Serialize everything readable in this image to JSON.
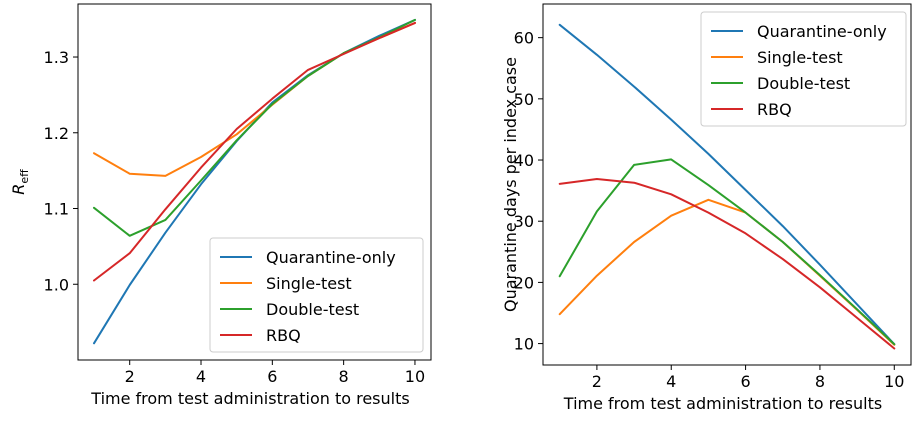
{
  "colors": {
    "quarantine_only": "#1f77b4",
    "single_test": "#ff7f0e",
    "double_test": "#2ca02c",
    "rbq": "#d62728"
  },
  "chart_data": [
    {
      "type": "line",
      "xlabel": "Time from test administration to results",
      "ylabel": "R",
      "ylabel_subscript": "eff",
      "xlim": [
        0.55,
        10.45
      ],
      "ylim": [
        0.9,
        1.37
      ],
      "xticks": [
        "2",
        "4",
        "6",
        "8",
        "10"
      ],
      "yticks": [
        "1.0",
        "1.1",
        "1.2",
        "1.3"
      ],
      "legend_position": "lower-right",
      "x": [
        1,
        2,
        3,
        4,
        5,
        6,
        7,
        8,
        9,
        10
      ],
      "series": [
        {
          "name": "Quarantine-only",
          "color": "#1f77b4",
          "values": [
            0.922,
            0.999,
            1.068,
            1.132,
            1.189,
            1.24,
            1.276,
            1.305,
            1.328,
            1.349
          ]
        },
        {
          "name": "Single-test",
          "color": "#ff7f0e",
          "values": [
            1.173,
            1.146,
            1.143,
            1.168,
            1.198,
            1.237,
            1.275,
            1.305,
            1.325,
            1.345
          ]
        },
        {
          "name": "Double-test",
          "color": "#2ca02c",
          "values": [
            1.101,
            1.064,
            1.085,
            1.137,
            1.19,
            1.238,
            1.275,
            1.305,
            1.326,
            1.349
          ]
        },
        {
          "name": "RBQ",
          "color": "#d62728",
          "values": [
            1.005,
            1.041,
            1.099,
            1.154,
            1.205,
            1.245,
            1.283,
            1.304,
            1.325,
            1.345
          ]
        }
      ]
    },
    {
      "type": "line",
      "xlabel": "Time from test administration to results",
      "ylabel": "Quarantine days per index case",
      "xlim": [
        0.55,
        10.45
      ],
      "ylim": [
        6.5,
        65.5
      ],
      "xticks": [
        "2",
        "4",
        "6",
        "8",
        "10"
      ],
      "yticks": [
        "10",
        "20",
        "30",
        "40",
        "50",
        "60"
      ],
      "legend_position": "upper-right",
      "x": [
        1,
        2,
        3,
        4,
        5,
        6,
        7,
        8,
        9,
        10
      ],
      "series": [
        {
          "name": "Quarantine-only",
          "color": "#1f77b4",
          "values": [
            62.1,
            57.2,
            52.0,
            46.6,
            41.0,
            35.1,
            29.2,
            22.9,
            16.4,
            9.9
          ]
        },
        {
          "name": "Single-test",
          "color": "#ff7f0e",
          "values": [
            14.8,
            21.1,
            26.6,
            30.9,
            33.5,
            31.4,
            26.6,
            21.1,
            15.5,
            9.8
          ]
        },
        {
          "name": "Double-test",
          "color": "#2ca02c",
          "values": [
            21.0,
            31.6,
            39.2,
            40.1,
            35.9,
            31.4,
            26.6,
            21.2,
            15.6,
            9.9
          ]
        },
        {
          "name": "RBQ",
          "color": "#d62728",
          "values": [
            36.1,
            36.9,
            36.3,
            34.4,
            31.4,
            28.0,
            23.8,
            19.2,
            14.2,
            9.2
          ]
        }
      ]
    }
  ]
}
